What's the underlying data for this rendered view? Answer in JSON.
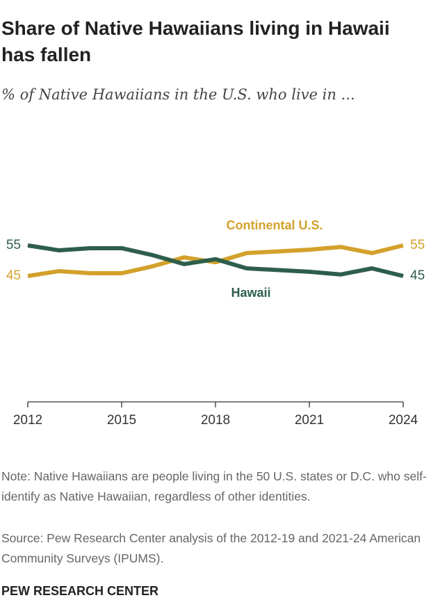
{
  "chart_data": {
    "type": "line",
    "title": "Share of Native Hawaiians living in Hawaii has fallen",
    "subtitle": "% of Native Hawaiians in the U.S. who live in ...",
    "x": [
      2012,
      2013,
      2014,
      2015,
      2016,
      2017,
      2018,
      2019,
      2021,
      2022,
      2023,
      2024
    ],
    "series": [
      {
        "name": "Continental U.S.",
        "color": "#d3a12b",
        "values": [
          45,
          46.6,
          45.9,
          45.9,
          48.2,
          51.1,
          49.5,
          52.5,
          53.6,
          54.5,
          52.5,
          55
        ]
      },
      {
        "name": "Hawaii",
        "color": "#2e5e4b",
        "values": [
          55,
          53.4,
          54.1,
          54.1,
          51.8,
          48.9,
          50.5,
          47.5,
          46.4,
          45.5,
          47.5,
          45
        ]
      }
    ],
    "xlim": [
      2012,
      2024
    ],
    "xticks": [
      2012,
      2015,
      2018,
      2021,
      2024
    ],
    "ylim": [
      0,
      100
    ],
    "note": "Note: Native Hawaiians are people living in the 50 U.S. states or D.C. who self-identify as Native Hawaiian, regardless of other identities.",
    "source": "Source: Pew Research Center analysis of the 2012-19 and 2021-24 American Community Surveys (IPUMS).",
    "footer": "PEW RESEARCH CENTER"
  }
}
